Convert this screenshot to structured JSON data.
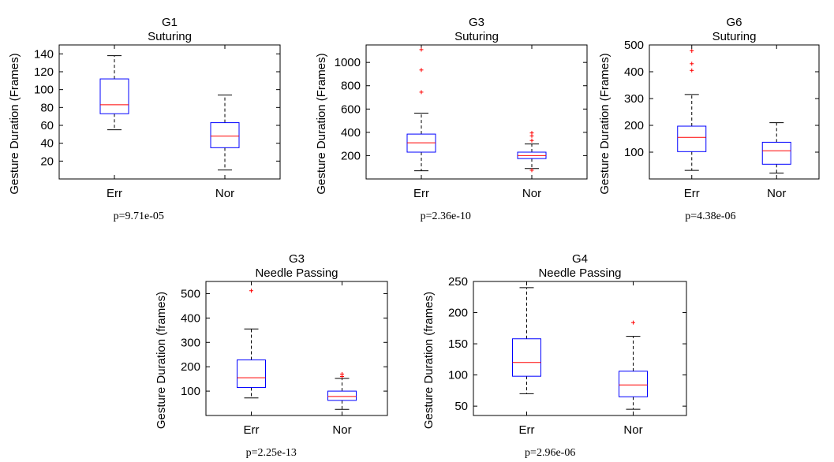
{
  "colors": {
    "box": "#0000ff",
    "median": "#ff0000",
    "outlier": "#ff0000",
    "whisker": "#000000",
    "axes": "#000000"
  },
  "chart_data": [
    {
      "type": "box",
      "title": "G1",
      "subtitle": "Suturing",
      "ylabel": "Gesture Duration (Frames)",
      "ylim": [
        0,
        150
      ],
      "yticks": [
        20,
        40,
        60,
        80,
        100,
        120,
        140
      ],
      "categories": [
        "Err",
        "Nor"
      ],
      "boxes": [
        {
          "whisker_low": 55,
          "q1": 73,
          "median": 83,
          "q3": 112,
          "whisker_high": 138,
          "outliers": []
        },
        {
          "whisker_low": 10,
          "q1": 35,
          "median": 48,
          "q3": 63,
          "whisker_high": 94,
          "outliers": []
        }
      ],
      "pvalue": "p=9.71e-05"
    },
    {
      "type": "box",
      "title": "G3",
      "subtitle": "Suturing",
      "ylabel": "Gesture Duration (Frames)",
      "ylim": [
        0,
        1150
      ],
      "yticks": [
        200,
        400,
        600,
        800,
        1000
      ],
      "categories": [
        "Err",
        "Nor"
      ],
      "boxes": [
        {
          "whisker_low": 70,
          "q1": 230,
          "median": 310,
          "q3": 385,
          "whisker_high": 565,
          "outliers": [
            745,
            935,
            1110
          ]
        },
        {
          "whisker_low": 90,
          "q1": 175,
          "median": 200,
          "q3": 230,
          "whisker_high": 300,
          "outliers": [
            330,
            370,
            395,
            75
          ]
        }
      ],
      "pvalue": "p=2.36e-10"
    },
    {
      "type": "box",
      "title": "G6",
      "subtitle": "Suturing",
      "ylabel": "Gesture Duration (Frames)",
      "ylim": [
        0,
        500
      ],
      "yticks": [
        100,
        200,
        300,
        400,
        500
      ],
      "categories": [
        "Err",
        "Nor"
      ],
      "boxes": [
        {
          "whisker_low": 32,
          "q1": 102,
          "median": 155,
          "q3": 197,
          "whisker_high": 315,
          "outliers": [
            405,
            430,
            478
          ]
        },
        {
          "whisker_low": 22,
          "q1": 55,
          "median": 105,
          "q3": 137,
          "whisker_high": 210,
          "outliers": []
        }
      ],
      "pvalue": "p=4.38e-06"
    },
    {
      "type": "box",
      "title": "G3",
      "subtitle": "Needle Passing",
      "ylabel": "Gesture Duration (frames)",
      "ylim": [
        0,
        550
      ],
      "yticks": [
        100,
        200,
        300,
        400,
        500
      ],
      "categories": [
        "Err",
        "Nor"
      ],
      "boxes": [
        {
          "whisker_low": 72,
          "q1": 115,
          "median": 155,
          "q3": 228,
          "whisker_high": 355,
          "outliers": [
            512
          ]
        },
        {
          "whisker_low": 25,
          "q1": 62,
          "median": 78,
          "q3": 100,
          "whisker_high": 152,
          "outliers": [
            160,
            170
          ]
        }
      ],
      "pvalue": "p=2.25e-13"
    },
    {
      "type": "box",
      "title": "G4",
      "subtitle": "Needle Passing",
      "ylabel": "Gesture Duration (frames)",
      "ylim": [
        35,
        250
      ],
      "yticks": [
        50,
        100,
        150,
        200,
        250
      ],
      "categories": [
        "Err",
        "Nor"
      ],
      "boxes": [
        {
          "whisker_low": 70,
          "q1": 98,
          "median": 120,
          "q3": 158,
          "whisker_high": 240,
          "outliers": []
        },
        {
          "whisker_low": 45,
          "q1": 65,
          "median": 84,
          "q3": 106,
          "whisker_high": 162,
          "outliers": [
            184
          ]
        }
      ],
      "pvalue": "p=2.96e-06"
    }
  ]
}
